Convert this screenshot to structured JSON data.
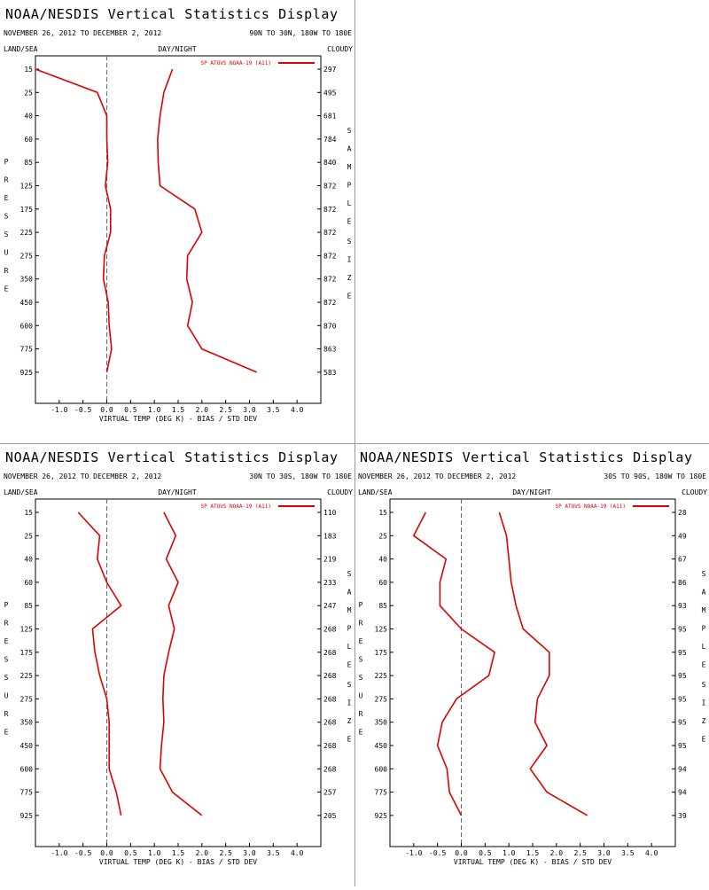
{
  "panels": [
    {
      "title": "NOAA/NESDIS Vertical Statistics Display",
      "date_range": "NOVEMBER 26, 2012 TO DECEMBER 2, 2012",
      "region": "90N TO 30N, 180W TO 180E",
      "top_left_label": "LAND/SEA",
      "top_center_label": "DAY/NIGHT",
      "top_right_label": "CLOUDY",
      "left_vertical_label": "PRESSURE",
      "right_vertical_label_1": "SAMPLE",
      "right_vertical_label_2": "SIZE"
    },
    {
      "title": "NOAA/NESDIS Vertical Statistics Display",
      "date_range": "NOVEMBER 26, 2012 TO DECEMBER 2, 2012",
      "region": "30N TO 30S, 180W TO 180E",
      "top_left_label": "LAND/SEA",
      "top_center_label": "DAY/NIGHT",
      "top_right_label": "CLOUDY",
      "left_vertical_label": "PRESSURE",
      "right_vertical_label_1": "SAMPLE",
      "right_vertical_label_2": "SIZE"
    },
    {
      "title": "NOAA/NESDIS Vertical Statistics Display",
      "date_range": "NOVEMBER 26, 2012 TO DECEMBER 2, 2012",
      "region": "30S TO 90S, 180W TO 180E",
      "top_left_label": "LAND/SEA",
      "top_center_label": "DAY/NIGHT",
      "top_right_label": "CLOUDY",
      "left_vertical_label": "PRESSURE",
      "right_vertical_label_1": "SAMPLE",
      "right_vertical_label_2": "SIZE"
    }
  ],
  "chart_data": [
    {
      "type": "line",
      "xlabel": "VIRTUAL TEMP (DEG K) - BIAS / STD DEV",
      "xlim": [
        -1.5,
        4.5
      ],
      "x_ticks": [
        "-1.0",
        "-0.5",
        "0.0",
        "0.5",
        "1.0",
        "1.5",
        "2.0",
        "2.5",
        "3.0",
        "3.5",
        "4.0"
      ],
      "y_categories": [
        "15",
        "25",
        "40",
        "60",
        "85",
        "125",
        "175",
        "225",
        "275",
        "350",
        "450",
        "600",
        "775",
        "925"
      ],
      "sample_size": [
        "297",
        "495",
        "681",
        "784",
        "840",
        "872",
        "872",
        "872",
        "872",
        "872",
        "872",
        "870",
        "863",
        "583"
      ],
      "legend_position": "top-right",
      "colors": {
        "series": "#dd0000",
        "zero_line": "#666666"
      },
      "series": [
        {
          "name": "SP ATOVS NOAA-19 (A11)",
          "kind": "bias",
          "values": [
            -1.5,
            -0.2,
            0.0,
            0.0,
            0.02,
            -0.03,
            0.08,
            0.08,
            -0.05,
            -0.07,
            0.03,
            0.05,
            0.1,
            0.0
          ]
        },
        {
          "name": "SP ATOVS NOAA-19 (A11)",
          "kind": "std_dev",
          "values": [
            1.38,
            1.2,
            1.12,
            1.07,
            1.08,
            1.12,
            1.85,
            2.0,
            1.7,
            1.68,
            1.8,
            1.7,
            2.0,
            3.15
          ]
        }
      ]
    },
    {
      "type": "line",
      "xlabel": "VIRTUAL TEMP (DEG K) - BIAS / STD DEV",
      "xlim": [
        -1.5,
        4.5
      ],
      "x_ticks": [
        "-1.0",
        "-0.5",
        "0.0",
        "0.5",
        "1.0",
        "1.5",
        "2.0",
        "2.5",
        "3.0",
        "3.5",
        "4.0"
      ],
      "y_categories": [
        "15",
        "25",
        "40",
        "60",
        "85",
        "125",
        "175",
        "225",
        "275",
        "350",
        "450",
        "600",
        "775",
        "925"
      ],
      "sample_size": [
        "110",
        "183",
        "219",
        "233",
        "247",
        "268",
        "268",
        "268",
        "268",
        "268",
        "268",
        "268",
        "257",
        "205"
      ],
      "legend_position": "top-right",
      "colors": {
        "series": "#dd0000",
        "zero_line": "#666666"
      },
      "series": [
        {
          "name": "SP ATOVS NOAA-19 (A11)",
          "kind": "bias",
          "values": [
            -0.6,
            -0.15,
            -0.2,
            0.0,
            0.3,
            -0.3,
            -0.25,
            -0.15,
            0.0,
            0.05,
            0.05,
            0.05,
            0.2,
            0.3
          ]
        },
        {
          "name": "SP ATOVS NOAA-19 (A11)",
          "kind": "std_dev",
          "values": [
            1.2,
            1.45,
            1.25,
            1.5,
            1.3,
            1.42,
            1.3,
            1.2,
            1.18,
            1.2,
            1.15,
            1.12,
            1.38,
            2.0
          ]
        }
      ]
    },
    {
      "type": "line",
      "xlabel": "VIRTUAL TEMP (DEG K) - BIAS / STD DEV",
      "xlim": [
        -1.5,
        4.5
      ],
      "x_ticks": [
        "-1.0",
        "-0.5",
        "0.0",
        "0.5",
        "1.0",
        "1.5",
        "2.0",
        "2.5",
        "3.0",
        "3.5",
        "4.0"
      ],
      "y_categories": [
        "15",
        "25",
        "40",
        "60",
        "85",
        "125",
        "175",
        "225",
        "275",
        "350",
        "450",
        "600",
        "775",
        "925"
      ],
      "sample_size": [
        "28",
        "49",
        "67",
        "86",
        "93",
        "95",
        "95",
        "95",
        "95",
        "95",
        "95",
        "94",
        "94",
        "39"
      ],
      "legend_position": "top-right",
      "colors": {
        "series": "#dd0000",
        "zero_line": "#666666"
      },
      "series": [
        {
          "name": "SP ATOVS NOAA-19 (A11)",
          "kind": "bias",
          "values": [
            -0.75,
            -1.0,
            -0.32,
            -0.45,
            -0.45,
            0.0,
            0.7,
            0.58,
            -0.1,
            -0.4,
            -0.5,
            -0.3,
            -0.25,
            0.0
          ]
        },
        {
          "name": "SP ATOVS NOAA-19 (A11)",
          "kind": "std_dev",
          "values": [
            0.8,
            0.95,
            1.0,
            1.05,
            1.15,
            1.3,
            1.85,
            1.85,
            1.6,
            1.55,
            1.8,
            1.45,
            1.8,
            2.65
          ]
        }
      ]
    }
  ]
}
